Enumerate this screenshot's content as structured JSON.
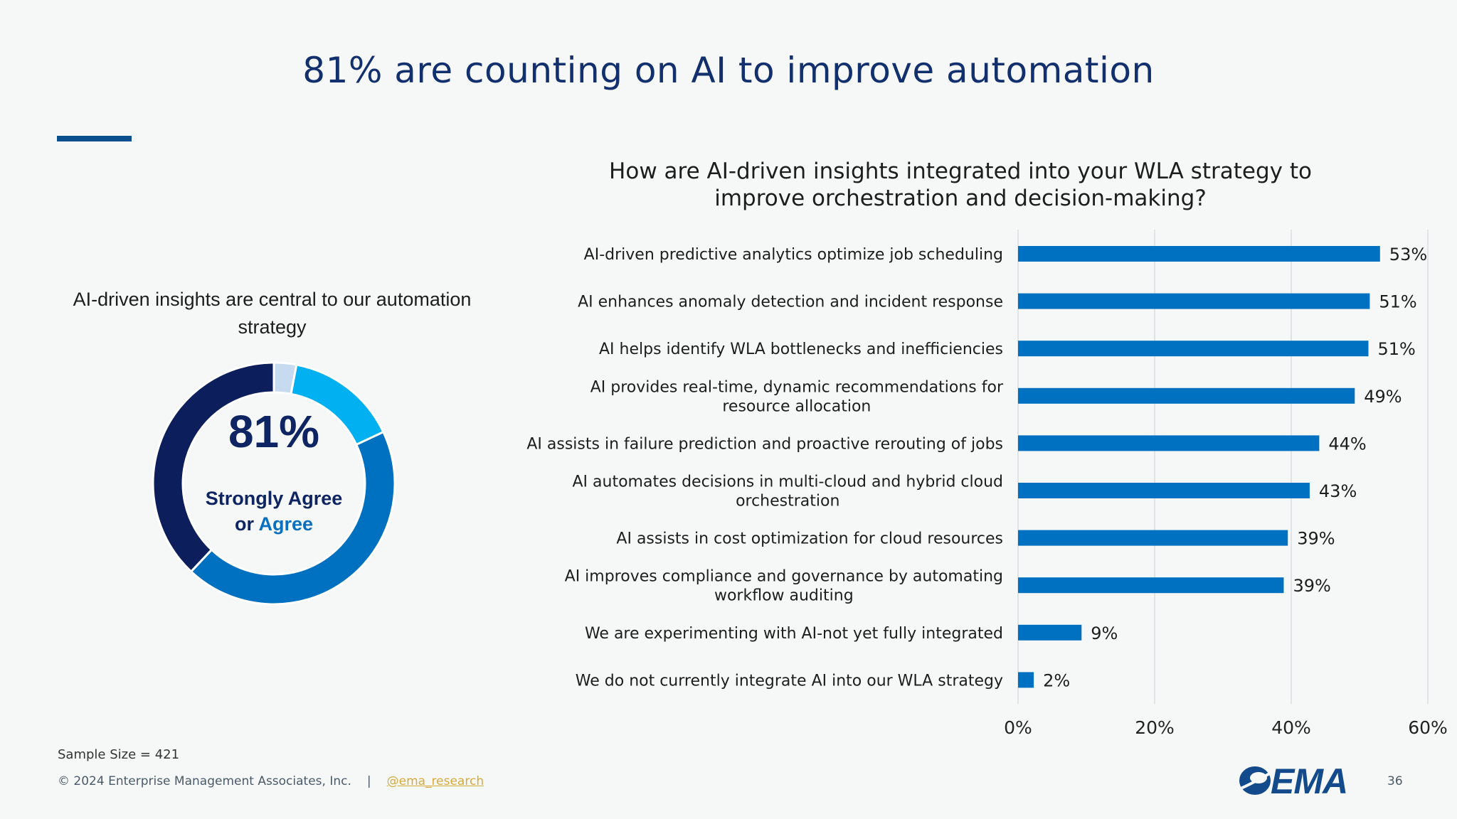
{
  "slide": {
    "title": "81% are counting on AI to improve automation",
    "sample_size": "Sample Size = 421",
    "copyright": "© 2024 Enterprise Management Associates, Inc.",
    "separator": "|",
    "twitter": "@ema_research",
    "logo_text": "EMA",
    "page_number": "36"
  },
  "donut": {
    "title": "AI-driven insights are central to our automation strategy",
    "percent": "81%",
    "label_line1": "Strongly Agree",
    "label_or": "or ",
    "label_agree": "Agree",
    "segments": [
      {
        "value": 0.03,
        "color": "#c6daf0"
      },
      {
        "value": 0.15,
        "color": "#00b0f0"
      },
      {
        "value": 0.44,
        "color": "#0070c0"
      },
      {
        "value": 0.38,
        "color": "#0c1f5c"
      }
    ]
  },
  "chart_data": {
    "type": "bar",
    "orientation": "horizontal",
    "title": "How are AI-driven insights integrated into your WLA strategy to improve orchestration and decision-making?",
    "categories": [
      [
        "AI-driven predictive analytics optimize job scheduling"
      ],
      [
        "AI enhances anomaly detection and incident response"
      ],
      [
        "AI helps identify WLA bottlenecks and inefficiencies"
      ],
      [
        "AI provides real-time, dynamic recommendations for",
        "resource allocation"
      ],
      [
        "AI assists in failure prediction and proactive rerouting of jobs"
      ],
      [
        "AI automates decisions in multi-cloud and hybrid cloud",
        "orchestration"
      ],
      [
        "AI assists in cost optimization for cloud resources"
      ],
      [
        "AI improves compliance and governance by automating",
        "workflow auditing"
      ],
      [
        "We are experimenting with AI-not yet fully integrated"
      ],
      [
        "We do not currently integrate AI into our WLA strategy"
      ]
    ],
    "values": [
      53,
      51.5,
      51.3,
      49.3,
      44.1,
      42.7,
      39.5,
      38.9,
      9.3,
      2.3
    ],
    "value_labels": [
      "53%",
      "51%",
      "51%",
      "49%",
      "44%",
      "43%",
      "39%",
      "39%",
      "9%",
      "2%"
    ],
    "xlim": [
      0,
      60
    ],
    "xticks": [
      0,
      20,
      40,
      60
    ],
    "xtick_labels": [
      "0%",
      "20%",
      "40%",
      "60%"
    ],
    "grid": true,
    "bar_color": "#0070c0"
  }
}
